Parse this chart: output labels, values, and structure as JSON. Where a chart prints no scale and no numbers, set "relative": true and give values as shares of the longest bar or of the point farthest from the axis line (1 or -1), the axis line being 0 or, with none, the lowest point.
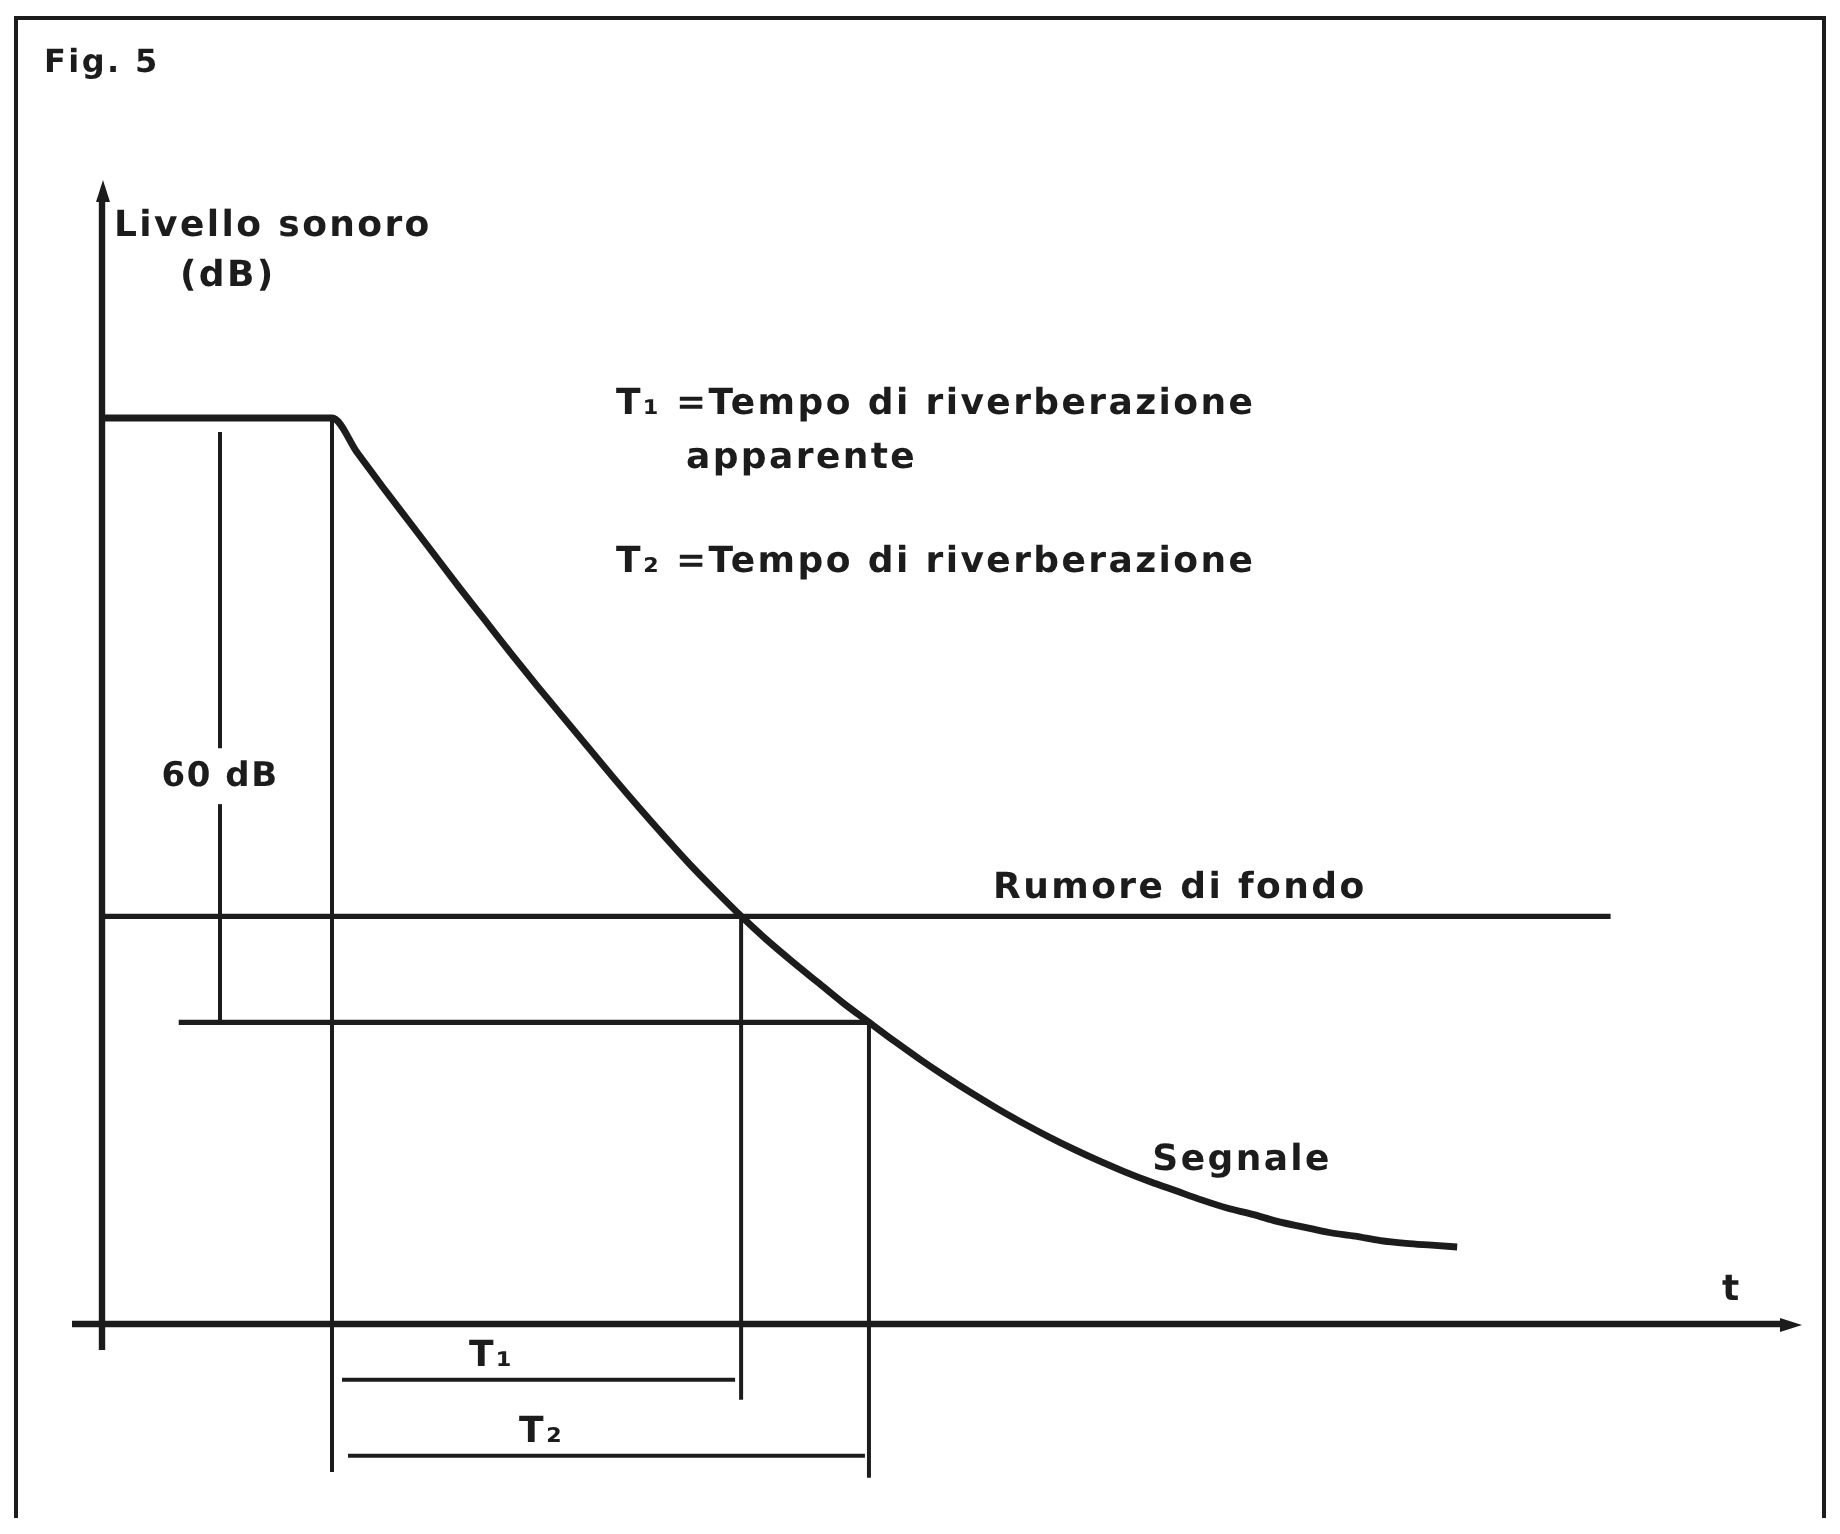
{
  "chart_data": {
    "type": "line",
    "title": "Fig. 5",
    "xlabel": "t",
    "ylabel": "Livello sonoro (dB)",
    "relative": true,
    "categories": [
      null,
      null,
      null,
      null,
      null,
      null,
      null,
      null,
      null,
      null,
      null,
      null,
      null,
      null,
      null,
      null,
      null,
      null,
      null,
      null,
      null,
      null,
      null,
      null,
      null,
      null,
      null,
      null,
      null,
      null,
      null,
      null,
      null,
      null,
      null,
      null,
      null,
      null,
      null,
      null,
      null,
      null,
      null,
      null,
      null,
      null,
      null,
      null,
      null,
      null,
      null,
      null,
      null,
      null,
      null,
      null,
      null,
      null,
      null,
      null,
      null,
      null,
      null,
      null,
      null,
      null
    ],
    "series": [
      {
        "name": "Segnale",
        "color": "#1c1c1c",
        "values": [
          1,
          1,
          1,
          1,
          1,
          1,
          1,
          1,
          1,
          1,
          0.961,
          0.923,
          0.886,
          0.849,
          0.812,
          0.776,
          0.74,
          0.705,
          0.671,
          0.637,
          0.603,
          0.57,
          0.538,
          0.507,
          0.478,
          0.45,
          0.424,
          0.4,
          0.377,
          0.354,
          0.333,
          0.312,
          0.292,
          0.273,
          0.255,
          0.238,
          0.222,
          0.207,
          0.193,
          0.18,
          0.168,
          0.157,
          0.147,
          0.137,
          0.128,
          0.121,
          0.113,
          0.107,
          0.101,
          0.097,
          0.092,
          0.089,
          0.087,
          0.085,
          null,
          null,
          null,
          null,
          null,
          null,
          null,
          null,
          null,
          null,
          null,
          null
        ]
      },
      {
        "name": "Rumore di fondo",
        "color": "#1c1c1c",
        "values": [
          0.45,
          0.45,
          0.45,
          0.45,
          0.45,
          0.45,
          0.45,
          0.45,
          0.45,
          0.45,
          0.45,
          0.45,
          0.45,
          0.45,
          0.45,
          0.45,
          0.45,
          0.45,
          0.45,
          0.45,
          0.45,
          0.45,
          0.45,
          0.45,
          0.45,
          0.45,
          0.45,
          0.45,
          0.45,
          0.45,
          0.45,
          0.45,
          0.45,
          0.45,
          0.45,
          0.45,
          0.45,
          0.45,
          0.45,
          0.45,
          0.45,
          0.45,
          0.45,
          0.45,
          0.45,
          0.45,
          0.45,
          0.45,
          0.45,
          0.45,
          0.45,
          0.45,
          0.45,
          0.45,
          0.45,
          0.45,
          0.45,
          0.45,
          0.45,
          0.45,
          null,
          null,
          null,
          null,
          null,
          null
        ]
      },
      {
        "color": "#1c1c1c",
        "values": [
          null,
          null,
          null,
          0.333,
          0.333,
          0.333,
          0.333,
          0.333,
          0.333,
          0.333,
          0.333,
          0.333,
          0.333,
          0.333,
          0.333,
          0.333,
          0.333,
          0.333,
          0.333,
          0.333,
          0.333,
          0.333,
          0.333,
          0.333,
          0.333,
          0.333,
          0.333,
          0.333,
          0.333,
          0.333,
          0.333,
          null,
          null,
          null,
          null,
          null,
          null,
          null,
          null,
          null,
          null,
          null,
          null,
          null,
          null,
          null,
          null,
          null,
          null,
          null,
          null,
          null,
          null,
          null,
          null,
          null,
          null,
          null,
          null,
          null,
          null,
          null,
          null,
          null,
          null,
          null
        ]
      }
    ],
    "annotations": [
      "T₁ =Tempo di riverberazione apparente",
      "T₂ =Tempo di riverberazione",
      "60 dB",
      "T₁",
      "T₂"
    ]
  }
}
